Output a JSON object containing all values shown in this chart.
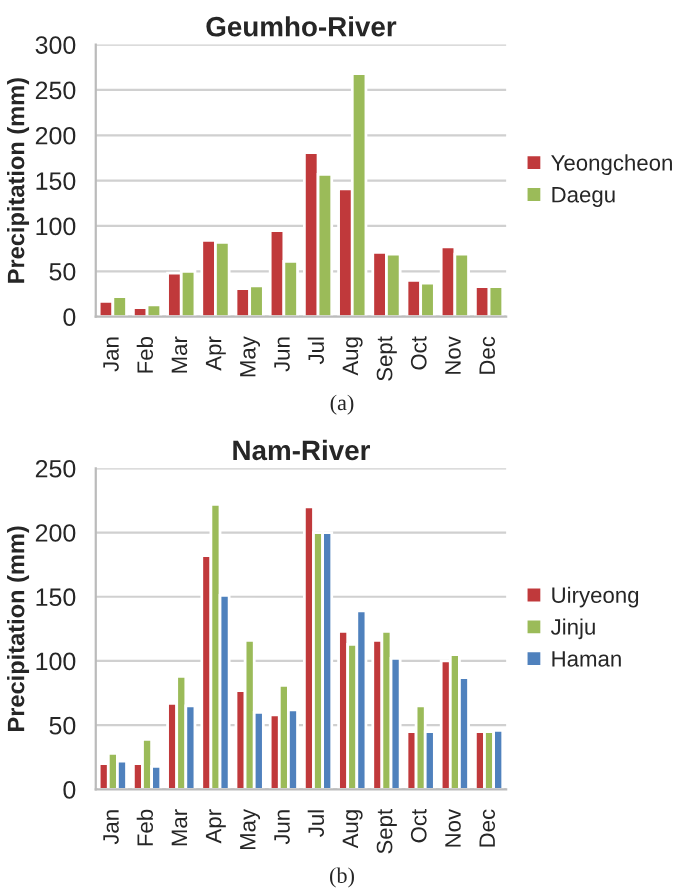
{
  "chart_data": [
    {
      "type": "bar",
      "title": "Geumho-River",
      "ylabel": "Precipitation (mm)",
      "categories": [
        "Jan",
        "Feb",
        "Mar",
        "Apr",
        "May",
        "Jun",
        "Jul",
        "Aug",
        "Sept",
        "Oct",
        "Nov",
        "Dec"
      ],
      "series": [
        {
          "name": "Yeongcheon",
          "color": "#c0393b",
          "values": [
            17,
            10,
            48,
            84,
            31,
            95,
            181,
            141,
            71,
            40,
            77,
            33
          ]
        },
        {
          "name": "Daegu",
          "color": "#9bbb59",
          "values": [
            22,
            13,
            50,
            82,
            34,
            61,
            157,
            268,
            69,
            37,
            69,
            33
          ]
        }
      ],
      "ylim": [
        0,
        300
      ],
      "yticks": [
        0,
        50,
        100,
        150,
        200,
        250,
        300
      ],
      "grid": "y",
      "legend": "right",
      "annotations": [
        "(a)"
      ]
    },
    {
      "type": "bar",
      "title": "Nam-River",
      "ylabel": "Precipitation (mm)",
      "categories": [
        "Jan",
        "Feb",
        "Mar",
        "Apr",
        "May",
        "Jun",
        "Jul",
        "Aug",
        "Sept",
        "Oct",
        "Nov",
        "Dec"
      ],
      "series": [
        {
          "name": "Uiryeong",
          "color": "#c0393b",
          "values": [
            20,
            20,
            67,
            182,
            77,
            58,
            220,
            123,
            116,
            45,
            100,
            45
          ]
        },
        {
          "name": "Jinju",
          "color": "#9bbb59",
          "values": [
            28,
            39,
            88,
            222,
            116,
            81,
            200,
            113,
            123,
            65,
            105,
            45
          ]
        },
        {
          "name": "Haman",
          "color": "#4f81bd",
          "values": [
            22,
            18,
            65,
            151,
            60,
            62,
            200,
            139,
            102,
            45,
            87,
            46
          ]
        }
      ],
      "ylim": [
        0,
        250
      ],
      "yticks": [
        0,
        50,
        100,
        150,
        200,
        250
      ],
      "grid": "y",
      "legend": "right",
      "annotations": [
        "(b)"
      ]
    }
  ]
}
